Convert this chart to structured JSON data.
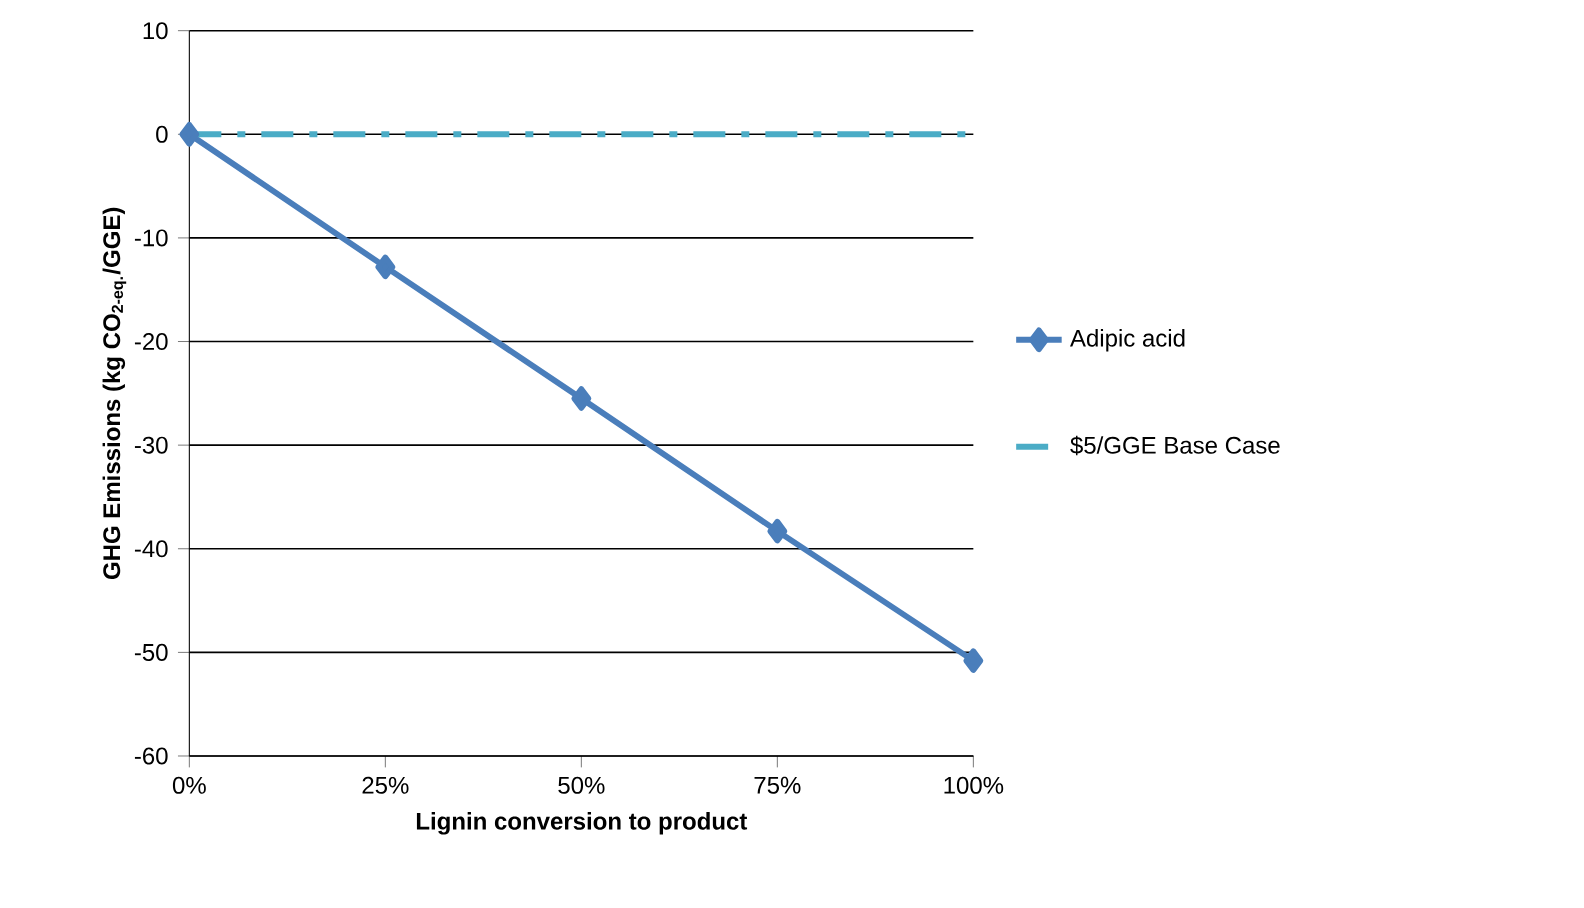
{
  "chart_data": {
    "type": "line",
    "xlabel": "Lignin conversion to product",
    "ylabel": "GHG Emissions (kg CO$_{2-eq.}$/GGE)",
    "x": [
      0,
      25,
      50,
      75,
      100
    ],
    "xlim": [
      0,
      100
    ],
    "xticks": [
      {
        "value": 0,
        "label": "0%"
      },
      {
        "value": 25,
        "label": "25%"
      },
      {
        "value": 50,
        "label": "50%"
      },
      {
        "value": 75,
        "label": "75%"
      },
      {
        "value": 100,
        "label": "100%"
      }
    ],
    "ylim": [
      -60,
      10
    ],
    "yticks": [
      -60,
      -50,
      -40,
      -30,
      -20,
      -10,
      0,
      10
    ],
    "grid": "y",
    "legend": "right",
    "series": [
      {
        "name": "Adipic acid",
        "color": "#4a7ebb",
        "marker": "diamond",
        "line_style": "solid",
        "values": [
          0,
          -12.8,
          -25.5,
          -38.3,
          -50.8
        ]
      },
      {
        "name": "$5/GGE Base Case",
        "color": "#4bacc6",
        "marker": "none",
        "line_style": "dashdot",
        "values": [
          0,
          0,
          0,
          0,
          0
        ]
      }
    ]
  }
}
